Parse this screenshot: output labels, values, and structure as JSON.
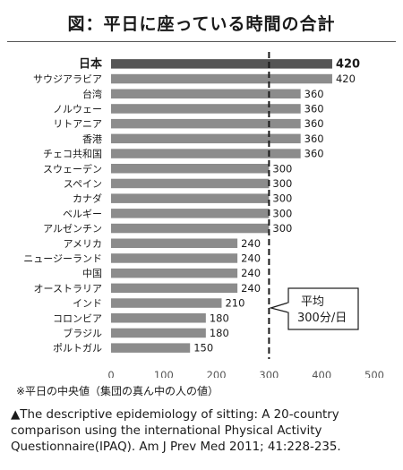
{
  "title": "図：平日に座っている時間の合計",
  "chart_data": {
    "type": "bar",
    "orientation": "horizontal",
    "categories": [
      "日本",
      "サウジアラビア",
      "台湾",
      "ノルウェー",
      "リトアニア",
      "香港",
      "チェコ共和国",
      "スウェーデン",
      "スペイン",
      "カナダ",
      "ベルギー",
      "アルゼンチン",
      "アメリカ",
      "ニュージーランド",
      "中国",
      "オーストラリア",
      "インド",
      "コロンビア",
      "ブラジル",
      "ポルトガル"
    ],
    "values": [
      420,
      420,
      360,
      360,
      360,
      360,
      360,
      300,
      300,
      300,
      300,
      300,
      240,
      240,
      240,
      240,
      210,
      180,
      180,
      150
    ],
    "highlight_category": "日本",
    "x_ticks": [
      "0",
      "100",
      "200",
      "300",
      "400",
      "500"
    ],
    "xlim": [
      0,
      500
    ],
    "x_unit": "（分／日）",
    "reference_line": {
      "value": 300,
      "style": "dashed"
    },
    "annotation": {
      "line1": "平均",
      "line2": "300分/日"
    },
    "colors": {
      "bar": "#8c8c8c",
      "highlight": "#555555"
    },
    "grid": false
  },
  "footnote": "※平日の中央値（集団の真ん中の人の値）",
  "citation": "▲The descriptive epidemiology of sitting: A 20-country comparison using the international Physical Activity Questionnaire(IPAQ). Am J Prev Med 2011; 41:228-235."
}
